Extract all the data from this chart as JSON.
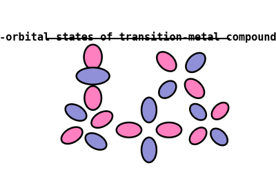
{
  "title": "d-orbital states of transition-metal compounds",
  "pink": "#FF80C0",
  "blue": "#9090D8",
  "bg": "#FFFFFF",
  "lw": 1.8,
  "figsize": [
    4.0,
    2.82
  ],
  "dpi": 100
}
